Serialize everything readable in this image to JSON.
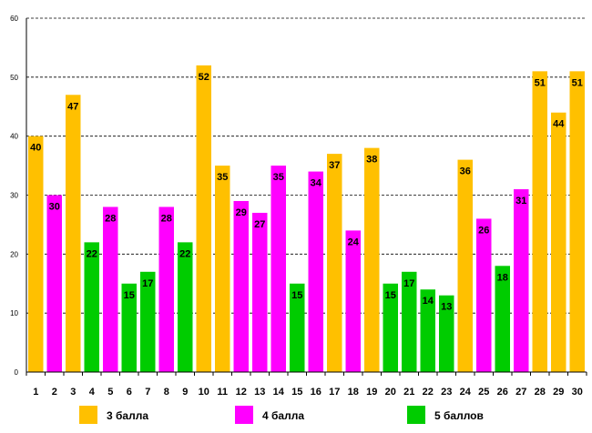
{
  "chart_data": {
    "type": "bar",
    "title": "",
    "xlabel": "",
    "ylabel": "",
    "ylim": [
      0,
      60
    ],
    "yticks": [
      0,
      10,
      20,
      30,
      40,
      50,
      60
    ],
    "grid": "horizontal dashed",
    "legend_position": "bottom",
    "categories": [
      "1",
      "2",
      "3",
      "4",
      "5",
      "6",
      "7",
      "8",
      "9",
      "10",
      "11",
      "12",
      "13",
      "14",
      "15",
      "16",
      "17",
      "18",
      "19",
      "20",
      "21",
      "22",
      "23",
      "24",
      "25",
      "26",
      "27",
      "28",
      "29",
      "30"
    ],
    "values": [
      40,
      30,
      47,
      22,
      28,
      15,
      17,
      28,
      22,
      52,
      35,
      29,
      27,
      35,
      15,
      34,
      37,
      24,
      38,
      15,
      17,
      14,
      13,
      36,
      26,
      18,
      31,
      51,
      44,
      51
    ],
    "groups": [
      0,
      1,
      0,
      2,
      1,
      2,
      2,
      1,
      2,
      0,
      0,
      1,
      1,
      1,
      2,
      1,
      0,
      1,
      0,
      2,
      2,
      2,
      2,
      0,
      1,
      2,
      1,
      0,
      0,
      0
    ],
    "series": [
      {
        "name": "3 балла",
        "color": "#FFC000"
      },
      {
        "name": "4 балла",
        "color": "#FF00FF"
      },
      {
        "name": "5 баллов",
        "color": "#00CC00"
      }
    ]
  }
}
